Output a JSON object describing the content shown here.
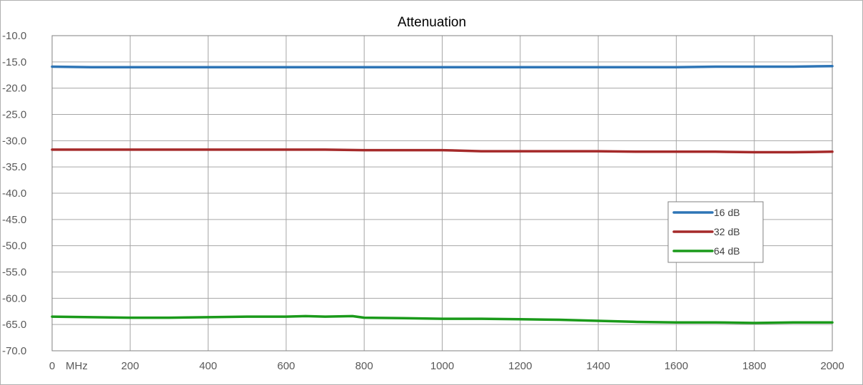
{
  "chart_data": {
    "type": "line",
    "title": "Attenuation",
    "x_unit_label": "MHz",
    "x_ticks": [
      "0",
      "200",
      "400",
      "600",
      "800",
      "1000",
      "1200",
      "1400",
      "1600",
      "1800",
      "2000"
    ],
    "y_ticks": [
      "-10.0",
      "-15.0",
      "-20.0",
      "-25.0",
      "-30.0",
      "-35.0",
      "-40.0",
      "-45.0",
      "-50.0",
      "-55.0",
      "-60.0",
      "-65.0",
      "-70.0"
    ],
    "xlim": [
      0,
      2000
    ],
    "ylim": [
      -70,
      -10
    ],
    "grid": true,
    "legend_position": "right-middle",
    "series": [
      {
        "name": "16 dB",
        "color": "#2e75b6",
        "x": [
          0,
          100,
          200,
          300,
          400,
          500,
          600,
          700,
          800,
          900,
          1000,
          1100,
          1200,
          1300,
          1400,
          1500,
          1600,
          1700,
          1800,
          1900,
          2000
        ],
        "y": [
          -15.9,
          -16.0,
          -16.0,
          -16.0,
          -16.0,
          -16.0,
          -16.0,
          -16.0,
          -16.0,
          -16.0,
          -16.0,
          -16.0,
          -16.0,
          -16.0,
          -16.0,
          -16.0,
          -16.0,
          -15.9,
          -15.9,
          -15.9,
          -15.8
        ]
      },
      {
        "name": "32 dB",
        "color": "#a52a2a",
        "x": [
          0,
          100,
          200,
          300,
          400,
          500,
          600,
          700,
          800,
          900,
          1000,
          1100,
          1200,
          1300,
          1400,
          1500,
          1600,
          1700,
          1800,
          1900,
          2000
        ],
        "y": [
          -31.7,
          -31.7,
          -31.7,
          -31.7,
          -31.7,
          -31.7,
          -31.7,
          -31.7,
          -31.8,
          -31.8,
          -31.8,
          -32.0,
          -32.0,
          -32.0,
          -32.0,
          -32.1,
          -32.1,
          -32.1,
          -32.2,
          -32.2,
          -32.1
        ]
      },
      {
        "name": "64 dB",
        "color": "#1a9a1a",
        "x": [
          0,
          100,
          200,
          300,
          400,
          500,
          600,
          650,
          700,
          770,
          800,
          900,
          1000,
          1100,
          1200,
          1300,
          1400,
          1500,
          1600,
          1700,
          1800,
          1900,
          2000
        ],
        "y": [
          -63.5,
          -63.6,
          -63.7,
          -63.7,
          -63.6,
          -63.5,
          -63.5,
          -63.4,
          -63.5,
          -63.4,
          -63.7,
          -63.8,
          -63.9,
          -63.9,
          -64.0,
          -64.1,
          -64.3,
          -64.5,
          -64.6,
          -64.6,
          -64.7,
          -64.6,
          -64.6
        ]
      }
    ]
  }
}
